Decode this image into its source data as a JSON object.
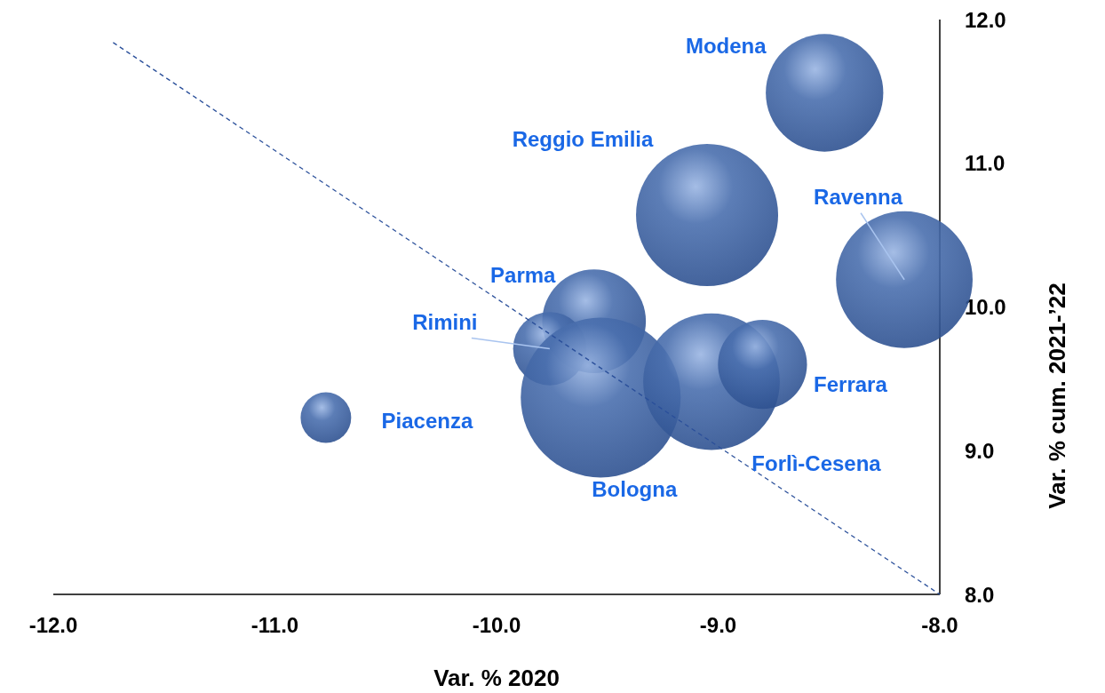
{
  "chart_data": {
    "type": "bubble",
    "xlabel": "Var. % 2020",
    "ylabel": "Var. % cum. 2021-’22",
    "xlim": [
      -12,
      -8
    ],
    "xticks": [
      {
        "value": -12,
        "label": "-12.0"
      },
      {
        "value": -11,
        "label": "-11.0"
      },
      {
        "value": -10,
        "label": "-10.0"
      },
      {
        "value": -9,
        "label": "-9.0"
      },
      {
        "value": -8,
        "label": "-8.0"
      }
    ],
    "ylim": [
      8,
      12
    ],
    "yticks": [
      {
        "value": 8,
        "label": "8.0"
      },
      {
        "value": 9,
        "label": "9.0"
      },
      {
        "value": 10,
        "label": "10.0"
      },
      {
        "value": 11,
        "label": "11.0"
      },
      {
        "value": 12,
        "label": "12.0"
      }
    ],
    "grid": false,
    "series": [
      {
        "name": "Modena",
        "color": "#4a6fae",
        "x": [
          -8.52
        ],
        "values": [
          11.49
        ],
        "sizes": [
          0.54
        ]
      },
      {
        "name": "Reggio Emilia",
        "color": "#4a6fae",
        "x": [
          -9.05
        ],
        "values": [
          10.64
        ],
        "sizes": [
          0.79
        ]
      },
      {
        "name": "Ravenna",
        "color": "#4a6fae",
        "x": [
          -8.16
        ],
        "values": [
          10.19
        ],
        "sizes": [
          0.73
        ]
      },
      {
        "name": "Parma",
        "color": "#4a6fae",
        "x": [
          -9.56
        ],
        "values": [
          9.9
        ],
        "sizes": [
          0.42
        ]
      },
      {
        "name": "Rimini",
        "color": "#4a6fae",
        "x": [
          -9.76
        ],
        "values": [
          9.71
        ],
        "sizes": [
          0.21
        ]
      },
      {
        "name": "Bologna",
        "color": "#4a6fae",
        "x": [
          -9.53
        ],
        "values": [
          9.37
        ],
        "sizes": [
          1
        ]
      },
      {
        "name": "Forlì-Cesena",
        "color": "#4a6fae",
        "x": [
          -9.03
        ],
        "values": [
          9.48
        ],
        "sizes": [
          0.73
        ]
      },
      {
        "name": "Ferrara",
        "color": "#4a6fae",
        "x": [
          -8.8
        ],
        "values": [
          9.6
        ],
        "sizes": [
          0.31
        ]
      },
      {
        "name": "Piacenza",
        "color": "#4a6fae",
        "x": [
          -10.77
        ],
        "values": [
          9.23
        ],
        "sizes": [
          0.1
        ]
      },
      {
        "type": "line",
        "color": "#2a4f9a",
        "line_style": "dashed",
        "x": [
          -11.73,
          -8
        ],
        "values": [
          11.84,
          8
        ]
      }
    ]
  }
}
